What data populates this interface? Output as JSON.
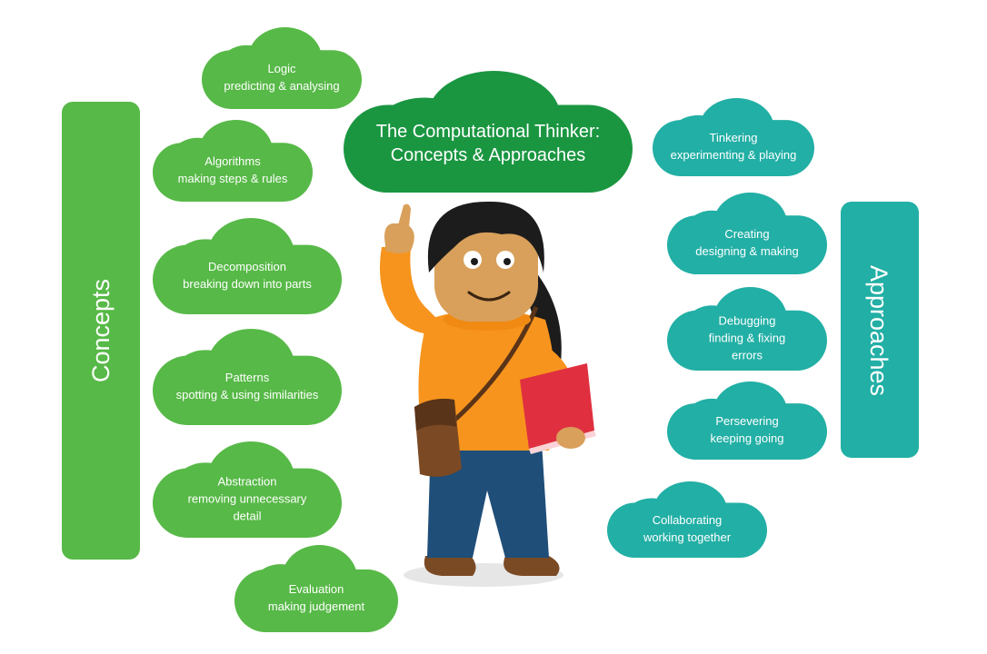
{
  "title": {
    "line1": "The Computational Thinker:",
    "line2": "Concepts & Approaches"
  },
  "concepts_label": "Concepts",
  "approaches_label": "Approaches",
  "concepts": [
    {
      "name": "Logic",
      "desc": [
        "predicting & analysing"
      ]
    },
    {
      "name": "Algorithms",
      "desc": [
        "making steps & rules"
      ]
    },
    {
      "name": "Decomposition",
      "desc": [
        "breaking down into parts"
      ]
    },
    {
      "name": "Patterns",
      "desc": [
        "spotting & using similarities"
      ]
    },
    {
      "name": "Abstraction",
      "desc": [
        "removing unnecessary",
        "detail"
      ]
    },
    {
      "name": "Evaluation",
      "desc": [
        "making judgement"
      ]
    }
  ],
  "approaches": [
    {
      "name": "Tinkering",
      "desc": [
        "experimenting & playing"
      ]
    },
    {
      "name": "Creating",
      "desc": [
        "designing & making"
      ]
    },
    {
      "name": "Debugging",
      "desc": [
        "finding & fixing",
        "errors"
      ]
    },
    {
      "name": "Persevering",
      "desc": [
        "keeping going"
      ]
    },
    {
      "name": "Collaborating",
      "desc": [
        "working together"
      ]
    }
  ],
  "colors": {
    "concept_green": "#57b947",
    "title_green": "#1a9641",
    "approach_teal": "#22afa5",
    "shirt_orange": "#f7941d",
    "skin": "#d9a05b",
    "hair": "#1c1c1c",
    "jeans": "#1f4e79",
    "book_red": "#e03040",
    "bag_brown": "#7b4a24"
  }
}
